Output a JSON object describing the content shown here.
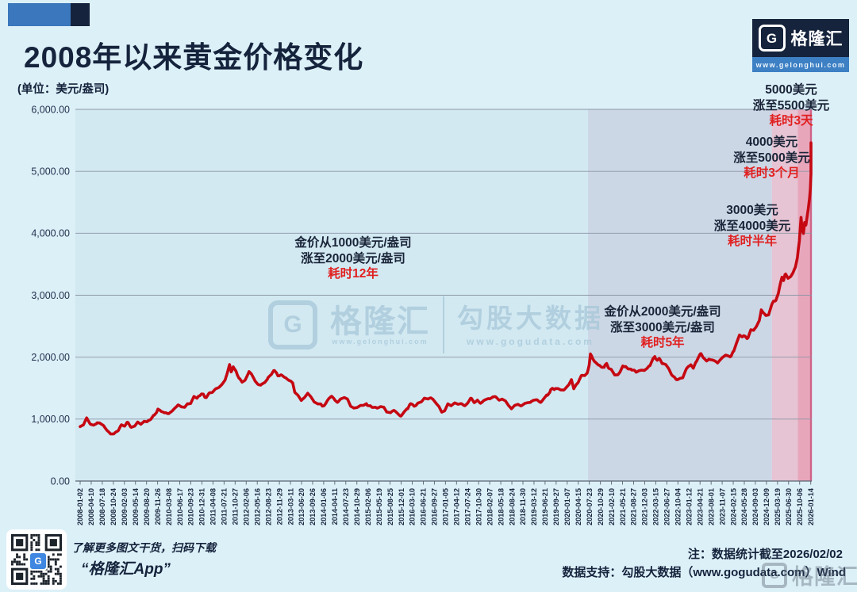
{
  "header": {
    "title": "2008年以来黄金价格变化",
    "unit": "(单位：美元/盎司)"
  },
  "brand_top": {
    "letter": "G",
    "name": "格隆汇",
    "url": "www.gelonghui.com"
  },
  "watermark": {
    "letter": "G",
    "brand": "格隆汇",
    "brand_url": "www.gelonghui.com",
    "data_brand": "勾股大数据",
    "data_url": "www.gogudata.com"
  },
  "annotations": [
    {
      "line1": "金价从1000美元/盎司",
      "line2": "涨至2000美元/盎司",
      "duration": "耗时12年"
    },
    {
      "line1": "金价从2000美元/盎司",
      "line2": "涨至3000美元/盎司",
      "duration": "耗时5年"
    },
    {
      "line1": "3000美元",
      "line2": "涨至4000美元",
      "duration": "耗时半年"
    },
    {
      "line1": "4000美元",
      "line2": "涨至5000美元",
      "duration": "耗时3个月"
    },
    {
      "line1": "5000美元",
      "line2": "涨至5500美元",
      "duration": "耗时3天"
    }
  ],
  "footer": {
    "left_line1": "了解更多图文干货，扫码下载",
    "left_line2": "“格隆汇App”",
    "right_line1": "注：数据统计截至2026/02/02",
    "right_line2": "数据支持：勾股大数据（www.gogudata.com）Wind",
    "watermark_brand": "格隆汇",
    "watermark_letter": "G"
  },
  "colors": {
    "line_red": "#c50812",
    "annotation_red": "#e12020",
    "navy": "#15233c",
    "brand_blue": "#3a77bd",
    "region_cyan": "#d2e9f2",
    "region_lavender": "#ccd7e6",
    "region_pink": "#e6c4d3",
    "region_deep_pink": "#e8a6bb",
    "deep_pink_edge": "#cf6487"
  },
  "chart_data": {
    "type": "line",
    "title": "2008年以来黄金价格变化",
    "unit": "美元/盎司",
    "series_name": "黄金价格",
    "color": "#c50812",
    "ylim": [
      0,
      6000
    ],
    "ytick_step": 1000,
    "grid": true,
    "legend": "none",
    "categories": [
      "2008-01-02",
      "2008-04-10",
      "2008-07-18",
      "2008-10-24",
      "2009-02-03",
      "2009-05-14",
      "2009-08-20",
      "2009-11-26",
      "2010-03-08",
      "2010-06-17",
      "2010-09-23",
      "2010-12-31",
      "2011-04-08",
      "2011-07-21",
      "2011-10-27",
      "2012-02-06",
      "2012-05-16",
      "2012-08-23",
      "2012-11-29",
      "2013-03-11",
      "2013-06-20",
      "2013-09-26",
      "2014-01-06",
      "2014-04-11",
      "2014-07-23",
      "2014-10-29",
      "2015-02-06",
      "2015-05-19",
      "2015-08-25",
      "2015-12-01",
      "2016-03-10",
      "2016-06-21",
      "2016-09-27",
      "2017-01-05",
      "2017-04-12",
      "2017-07-24",
      "2017-10-30",
      "2018-02-07",
      "2018-05-18",
      "2018-08-24",
      "2018-11-30",
      "2019-03-12",
      "2019-06-21",
      "2019-09-27",
      "2020-01-07",
      "2020-04-15",
      "2020-07-23",
      "2020-10-29",
      "2021-02-10",
      "2021-05-21",
      "2021-08-27",
      "2021-12-03",
      "2022-03-15",
      "2022-06-27",
      "2022-10-04",
      "2023-01-12",
      "2023-04-21",
      "2023-08-01",
      "2023-11-07",
      "2024-02-15",
      "2024-05-28",
      "2024-09-03",
      "2024-12-09",
      "2025-03-19",
      "2025-06-30",
      "2025-10-06",
      "2026-01-14"
    ],
    "regions": [
      {
        "from": 2007.8,
        "to": 2020.54,
        "color": "#d2e9f2"
      },
      {
        "from": 2020.54,
        "to": 2025.08,
        "color": "#ccd7e6"
      },
      {
        "from": 2025.08,
        "to": 2025.72,
        "color": "#e6c4d3"
      },
      {
        "from": 2025.72,
        "to": 2026.08,
        "color": "#e8a6bb"
      }
    ],
    "points": [
      [
        2008.0,
        860
      ],
      [
        2008.08,
        930
      ],
      [
        2008.16,
        1000
      ],
      [
        2008.25,
        910
      ],
      [
        2008.33,
        885
      ],
      [
        2008.42,
        930
      ],
      [
        2008.5,
        900
      ],
      [
        2008.58,
        870
      ],
      [
        2008.67,
        790
      ],
      [
        2008.75,
        740
      ],
      [
        2008.83,
        750
      ],
      [
        2008.92,
        815
      ],
      [
        2009.0,
        875
      ],
      [
        2009.08,
        900
      ],
      [
        2009.16,
        940
      ],
      [
        2009.25,
        880
      ],
      [
        2009.33,
        910
      ],
      [
        2009.42,
        925
      ],
      [
        2009.5,
        935
      ],
      [
        2009.58,
        950
      ],
      [
        2009.67,
        990
      ],
      [
        2009.75,
        1000
      ],
      [
        2009.83,
        1050
      ],
      [
        2009.92,
        1170
      ],
      [
        2010.0,
        1120
      ],
      [
        2010.08,
        1100
      ],
      [
        2010.17,
        1110
      ],
      [
        2010.25,
        1150
      ],
      [
        2010.33,
        1190
      ],
      [
        2010.42,
        1220
      ],
      [
        2010.5,
        1230
      ],
      [
        2010.58,
        1200
      ],
      [
        2010.67,
        1240
      ],
      [
        2010.75,
        1300
      ],
      [
        2010.83,
        1340
      ],
      [
        2010.92,
        1390
      ],
      [
        2011.0,
        1400
      ],
      [
        2011.08,
        1350
      ],
      [
        2011.17,
        1410
      ],
      [
        2011.25,
        1440
      ],
      [
        2011.33,
        1480
      ],
      [
        2011.42,
        1510
      ],
      [
        2011.5,
        1540
      ],
      [
        2011.58,
        1620
      ],
      [
        2011.64,
        1760
      ],
      [
        2011.69,
        1890
      ],
      [
        2011.73,
        1780
      ],
      [
        2011.78,
        1860
      ],
      [
        2011.83,
        1790
      ],
      [
        2011.88,
        1730
      ],
      [
        2011.94,
        1680
      ],
      [
        2012.0,
        1600
      ],
      [
        2012.06,
        1650
      ],
      [
        2012.12,
        1720
      ],
      [
        2012.17,
        1770
      ],
      [
        2012.23,
        1690
      ],
      [
        2012.3,
        1650
      ],
      [
        2012.38,
        1600
      ],
      [
        2012.46,
        1560
      ],
      [
        2012.54,
        1590
      ],
      [
        2012.62,
        1620
      ],
      [
        2012.7,
        1700
      ],
      [
        2012.78,
        1770
      ],
      [
        2012.85,
        1750
      ],
      [
        2012.92,
        1700
      ],
      [
        2013.0,
        1680
      ],
      [
        2013.08,
        1650
      ],
      [
        2013.16,
        1600
      ],
      [
        2013.25,
        1560
      ],
      [
        2013.3,
        1420
      ],
      [
        2013.38,
        1410
      ],
      [
        2013.46,
        1300
      ],
      [
        2013.54,
        1320
      ],
      [
        2013.62,
        1400
      ],
      [
        2013.7,
        1330
      ],
      [
        2013.78,
        1310
      ],
      [
        2013.85,
        1280
      ],
      [
        2013.92,
        1240
      ],
      [
        2013.98,
        1210
      ],
      [
        2014.06,
        1250
      ],
      [
        2014.14,
        1310
      ],
      [
        2014.21,
        1340
      ],
      [
        2014.29,
        1290
      ],
      [
        2014.37,
        1280
      ],
      [
        2014.45,
        1300
      ],
      [
        2014.52,
        1320
      ],
      [
        2014.6,
        1290
      ],
      [
        2014.68,
        1240
      ],
      [
        2014.76,
        1210
      ],
      [
        2014.84,
        1170
      ],
      [
        2014.92,
        1190
      ],
      [
        2015.0,
        1210
      ],
      [
        2015.07,
        1270
      ],
      [
        2015.14,
        1210
      ],
      [
        2015.21,
        1180
      ],
      [
        2015.29,
        1200
      ],
      [
        2015.36,
        1190
      ],
      [
        2015.43,
        1180
      ],
      [
        2015.5,
        1160
      ],
      [
        2015.57,
        1100
      ],
      [
        2015.64,
        1120
      ],
      [
        2015.71,
        1130
      ],
      [
        2015.79,
        1110
      ],
      [
        2015.86,
        1080
      ],
      [
        2015.93,
        1060
      ],
      [
        2016.0,
        1090
      ],
      [
        2016.07,
        1180
      ],
      [
        2016.14,
        1230
      ],
      [
        2016.21,
        1240
      ],
      [
        2016.29,
        1230
      ],
      [
        2016.36,
        1260
      ],
      [
        2016.43,
        1290
      ],
      [
        2016.5,
        1350
      ],
      [
        2016.57,
        1340
      ],
      [
        2016.64,
        1330
      ],
      [
        2016.71,
        1310
      ],
      [
        2016.79,
        1260
      ],
      [
        2016.86,
        1220
      ],
      [
        2016.93,
        1140
      ],
      [
        2017.0,
        1160
      ],
      [
        2017.08,
        1220
      ],
      [
        2017.16,
        1240
      ],
      [
        2017.25,
        1260
      ],
      [
        2017.33,
        1240
      ],
      [
        2017.42,
        1250
      ],
      [
        2017.5,
        1230
      ],
      [
        2017.58,
        1270
      ],
      [
        2017.66,
        1330
      ],
      [
        2017.75,
        1290
      ],
      [
        2017.83,
        1280
      ],
      [
        2017.92,
        1290
      ],
      [
        2018.0,
        1320
      ],
      [
        2018.08,
        1340
      ],
      [
        2018.17,
        1330
      ],
      [
        2018.25,
        1340
      ],
      [
        2018.33,
        1310
      ],
      [
        2018.42,
        1300
      ],
      [
        2018.5,
        1260
      ],
      [
        2018.58,
        1220
      ],
      [
        2018.65,
        1190
      ],
      [
        2018.73,
        1200
      ],
      [
        2018.81,
        1210
      ],
      [
        2018.9,
        1230
      ],
      [
        2018.98,
        1270
      ],
      [
        2019.06,
        1290
      ],
      [
        2019.14,
        1310
      ],
      [
        2019.22,
        1300
      ],
      [
        2019.3,
        1290
      ],
      [
        2019.38,
        1280
      ],
      [
        2019.45,
        1330
      ],
      [
        2019.52,
        1410
      ],
      [
        2019.6,
        1420
      ],
      [
        2019.66,
        1500
      ],
      [
        2019.73,
        1520
      ],
      [
        2019.8,
        1490
      ],
      [
        2019.87,
        1470
      ],
      [
        2019.94,
        1480
      ],
      [
        2020.0,
        1520
      ],
      [
        2020.07,
        1570
      ],
      [
        2020.13,
        1650
      ],
      [
        2020.19,
        1500
      ],
      [
        2020.25,
        1580
      ],
      [
        2020.32,
        1650
      ],
      [
        2020.39,
        1700
      ],
      [
        2020.46,
        1720
      ],
      [
        2020.52,
        1760
      ],
      [
        2020.57,
        1880
      ],
      [
        2020.6,
        2050
      ],
      [
        2020.65,
        1970
      ],
      [
        2020.7,
        1930
      ],
      [
        2020.76,
        1920
      ],
      [
        2020.82,
        1910
      ],
      [
        2020.88,
        1870
      ],
      [
        2020.94,
        1830
      ],
      [
        2021.0,
        1900
      ],
      [
        2021.06,
        1830
      ],
      [
        2021.13,
        1780
      ],
      [
        2021.2,
        1720
      ],
      [
        2021.27,
        1740
      ],
      [
        2021.33,
        1790
      ],
      [
        2021.4,
        1890
      ],
      [
        2021.47,
        1870
      ],
      [
        2021.53,
        1790
      ],
      [
        2021.6,
        1810
      ],
      [
        2021.67,
        1780
      ],
      [
        2021.73,
        1750
      ],
      [
        2021.8,
        1790
      ],
      [
        2021.87,
        1810
      ],
      [
        2021.93,
        1790
      ],
      [
        2022.0,
        1810
      ],
      [
        2022.07,
        1850
      ],
      [
        2022.14,
        1990
      ],
      [
        2022.19,
        2040
      ],
      [
        2022.25,
        1950
      ],
      [
        2022.32,
        1940
      ],
      [
        2022.39,
        1900
      ],
      [
        2022.46,
        1850
      ],
      [
        2022.53,
        1810
      ],
      [
        2022.6,
        1740
      ],
      [
        2022.67,
        1720
      ],
      [
        2022.74,
        1660
      ],
      [
        2022.81,
        1640
      ],
      [
        2022.88,
        1680
      ],
      [
        2022.95,
        1770
      ],
      [
        2023.02,
        1840
      ],
      [
        2023.08,
        1880
      ],
      [
        2023.14,
        1830
      ],
      [
        2023.2,
        1930
      ],
      [
        2023.27,
        1990
      ],
      [
        2023.33,
        2030
      ],
      [
        2023.4,
        1980
      ],
      [
        2023.47,
        1930
      ],
      [
        2023.53,
        1960
      ],
      [
        2023.6,
        1940
      ],
      [
        2023.67,
        1910
      ],
      [
        2023.74,
        1870
      ],
      [
        2023.8,
        1920
      ],
      [
        2023.87,
        1990
      ],
      [
        2023.94,
        2040
      ],
      [
        2024.0,
        2040
      ],
      [
        2024.07,
        2030
      ],
      [
        2024.14,
        2080
      ],
      [
        2024.21,
        2230
      ],
      [
        2024.28,
        2350
      ],
      [
        2024.35,
        2310
      ],
      [
        2024.42,
        2340
      ],
      [
        2024.49,
        2320
      ],
      [
        2024.56,
        2400
      ],
      [
        2024.63,
        2450
      ],
      [
        2024.7,
        2500
      ],
      [
        2024.77,
        2580
      ],
      [
        2024.82,
        2740
      ],
      [
        2024.87,
        2680
      ],
      [
        2024.93,
        2630
      ],
      [
        2025.0,
        2650
      ],
      [
        2025.06,
        2780
      ],
      [
        2025.12,
        2900
      ],
      [
        2025.18,
        2950
      ],
      [
        2025.24,
        3080
      ],
      [
        2025.29,
        3230
      ],
      [
        2025.33,
        3330
      ],
      [
        2025.37,
        3240
      ],
      [
        2025.42,
        3330
      ],
      [
        2025.48,
        3320
      ],
      [
        2025.54,
        3340
      ],
      [
        2025.6,
        3380
      ],
      [
        2025.66,
        3450
      ],
      [
        2025.71,
        3600
      ],
      [
        2025.76,
        3880
      ],
      [
        2025.8,
        4280
      ],
      [
        2025.83,
        4080
      ],
      [
        2025.86,
        4010
      ],
      [
        2025.89,
        4150
      ],
      [
        2025.92,
        4120
      ],
      [
        2025.95,
        4250
      ],
      [
        2025.98,
        4380
      ],
      [
        2026.01,
        4550
      ],
      [
        2026.03,
        4700
      ],
      [
        2026.05,
        4950
      ],
      [
        2026.07,
        5250
      ],
      [
        2026.085,
        5460
      ]
    ]
  }
}
